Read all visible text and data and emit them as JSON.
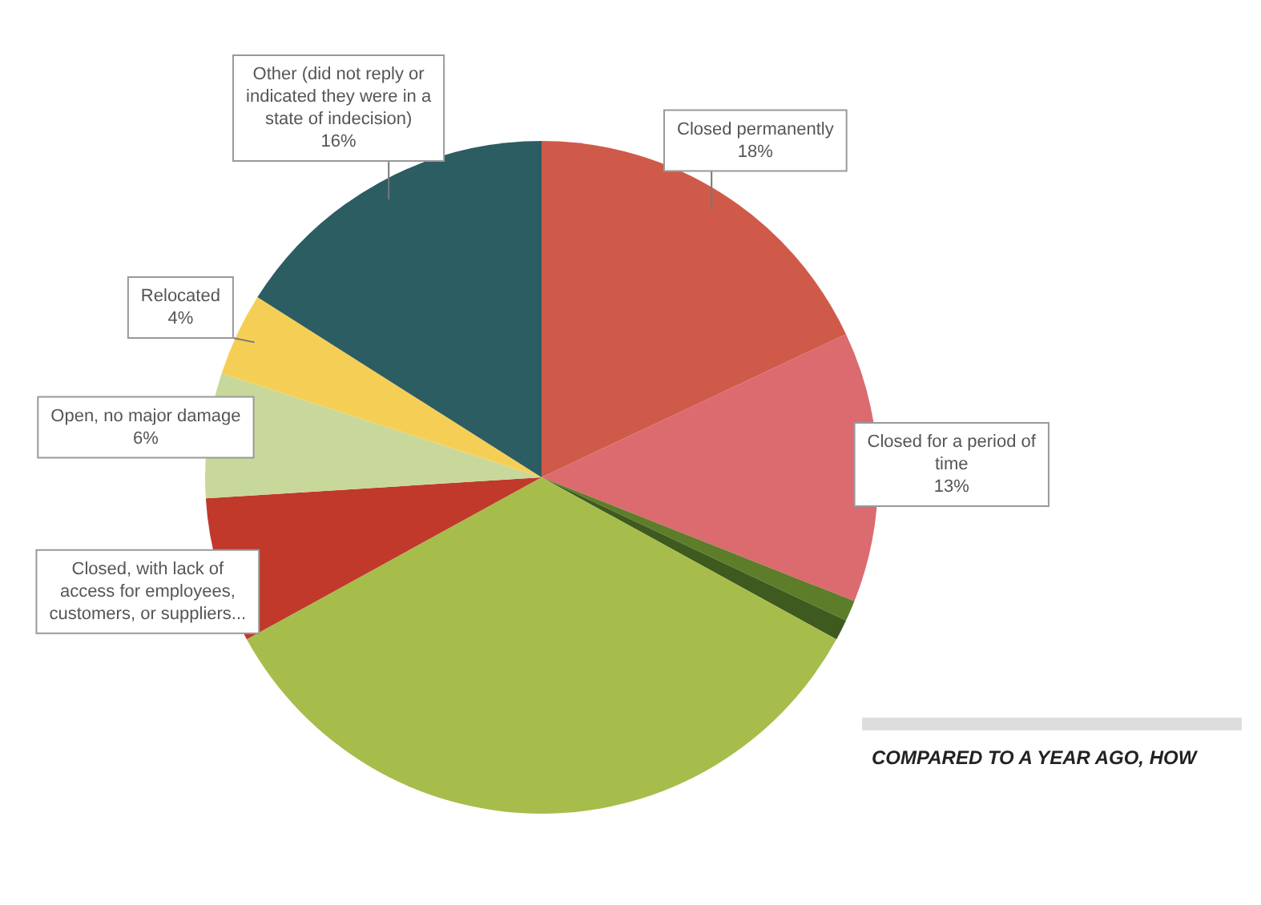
{
  "chart_data": {
    "type": "pie",
    "categories": [
      "Closed permanently",
      "Closed for a period of time",
      null,
      null,
      null,
      "Closed, with lack of access for employees, customers, or suppliers...",
      "Open, no major damage",
      "Relocated",
      "Other (did not reply or indicated they were in a state of indecision)"
    ],
    "values": [
      18,
      13,
      1,
      1,
      34,
      7,
      6,
      4,
      16
    ],
    "value_labels": [
      "18%",
      "13%",
      null,
      null,
      null,
      null,
      "6%",
      "4%",
      "16%"
    ],
    "colors": [
      "#d05a4a",
      "#db6b6e",
      "#5e7d2a",
      "#3f5a1e",
      "#a6bd4b",
      "#c0392b",
      "#c8d89a",
      "#f5cf55",
      "#2b5d63"
    ],
    "annotations": [
      "COMPARED TO A YEAR AGO, HOW"
    ],
    "legend": false
  }
}
